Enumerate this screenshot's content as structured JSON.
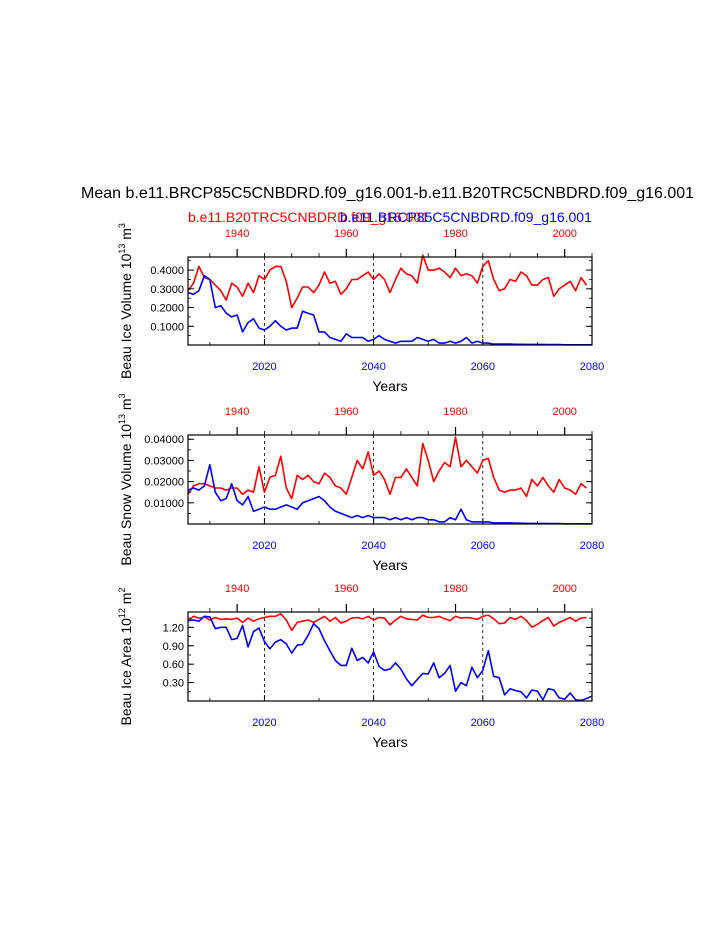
{
  "title": "Mean b.e11.BRCP85C5CNBDRD.f09_g16.001-b.e11.B20TRC5CNBDRD.f09_g16.001",
  "legend": {
    "red": "b.e11.B20TRC5CNBDRD.f09_g16.001",
    "blue": "b.e11.BRCP85C5CNBDRD.f09_g16.001"
  },
  "colors": {
    "red": "#ff0000",
    "blue": "#0000ff",
    "axis": "#000000"
  },
  "xlabel": "Years",
  "chart_data": [
    {
      "type": "line",
      "ylabel_parts": [
        "Beau Ice Volume 10",
        "13",
        " m",
        "3"
      ],
      "yticks": [
        0.1,
        0.2,
        0.3,
        0.4
      ],
      "yticklabels": [
        "0.1000",
        "0.2000",
        "0.3000",
        "0.4000"
      ],
      "ylim": [
        0.0,
        0.47
      ],
      "bottom_xlim": [
        2006,
        2080
      ],
      "bottom_xticks": [
        2020,
        2040,
        2060,
        2080
      ],
      "top_xlim": [
        1931,
        2005
      ],
      "top_xticks": [
        1940,
        1960,
        1980,
        2000
      ],
      "vlines_bottom": [
        2020,
        2040,
        2060
      ],
      "series": [
        {
          "name": "b.e11.B20TRC5CNBDRD.f09_g16.001",
          "color": "red",
          "x_start": 1931,
          "values": [
            0.29,
            0.33,
            0.42,
            0.36,
            0.35,
            0.32,
            0.29,
            0.24,
            0.33,
            0.31,
            0.26,
            0.33,
            0.28,
            0.37,
            0.35,
            0.4,
            0.42,
            0.42,
            0.34,
            0.2,
            0.25,
            0.31,
            0.31,
            0.28,
            0.32,
            0.39,
            0.33,
            0.34,
            0.27,
            0.3,
            0.35,
            0.35,
            0.37,
            0.39,
            0.35,
            0.38,
            0.35,
            0.28,
            0.35,
            0.41,
            0.38,
            0.37,
            0.33,
            0.48,
            0.4,
            0.4,
            0.41,
            0.39,
            0.36,
            0.41,
            0.37,
            0.38,
            0.37,
            0.33,
            0.42,
            0.45,
            0.35,
            0.29,
            0.3,
            0.35,
            0.34,
            0.39,
            0.37,
            0.32,
            0.32,
            0.35,
            0.36,
            0.26,
            0.3,
            0.32,
            0.34,
            0.29,
            0.36,
            0.32
          ]
        },
        {
          "name": "b.e11.BRCP85C5CNBDRD.f09_g16.001",
          "color": "blue",
          "x_start": 2006,
          "values": [
            0.28,
            0.27,
            0.29,
            0.37,
            0.35,
            0.2,
            0.21,
            0.17,
            0.15,
            0.16,
            0.07,
            0.12,
            0.14,
            0.09,
            0.08,
            0.1,
            0.13,
            0.1,
            0.08,
            0.09,
            0.09,
            0.18,
            0.17,
            0.16,
            0.07,
            0.07,
            0.04,
            0.03,
            0.02,
            0.06,
            0.04,
            0.04,
            0.04,
            0.02,
            0.03,
            0.05,
            0.03,
            0.02,
            0.01,
            0.02,
            0.02,
            0.02,
            0.04,
            0.03,
            0.02,
            0.03,
            0.01,
            0.01,
            0.02,
            0.01,
            0.02,
            0.04,
            0.01,
            0.02,
            0.01,
            0.01,
            0.005,
            0.005,
            0.005,
            0.005,
            0.004,
            0.004,
            0.003,
            0.003,
            0.003,
            0.003,
            0.002,
            0.002,
            0.002,
            0.001,
            0.001,
            0.001,
            0.001,
            0.001,
            0.001
          ]
        }
      ]
    },
    {
      "type": "line",
      "ylabel_parts": [
        "Beau Snow Volume 10",
        "13",
        " m",
        "3"
      ],
      "yticks": [
        0.01,
        0.02,
        0.03,
        0.04
      ],
      "yticklabels": [
        "0.01000",
        "0.02000",
        "0.03000",
        "0.04000"
      ],
      "ylim": [
        0.0,
        0.042
      ],
      "bottom_xlim": [
        2006,
        2080
      ],
      "bottom_xticks": [
        2020,
        2040,
        2060,
        2080
      ],
      "top_xlim": [
        1931,
        2005
      ],
      "top_xticks": [
        1940,
        1960,
        1980,
        2000
      ],
      "vlines_bottom": [
        2020,
        2040,
        2060
      ],
      "series": [
        {
          "name": "b.e11.B20TRC5CNBDRD.f09_g16.001",
          "color": "red",
          "x_start": 1931,
          "values": [
            0.014,
            0.018,
            0.019,
            0.019,
            0.018,
            0.017,
            0.017,
            0.016,
            0.017,
            0.017,
            0.014,
            0.016,
            0.015,
            0.027,
            0.015,
            0.022,
            0.023,
            0.032,
            0.017,
            0.012,
            0.023,
            0.021,
            0.023,
            0.02,
            0.019,
            0.024,
            0.022,
            0.018,
            0.017,
            0.014,
            0.022,
            0.03,
            0.026,
            0.034,
            0.023,
            0.025,
            0.021,
            0.014,
            0.022,
            0.022,
            0.026,
            0.022,
            0.018,
            0.038,
            0.03,
            0.02,
            0.025,
            0.029,
            0.027,
            0.041,
            0.027,
            0.03,
            0.027,
            0.024,
            0.03,
            0.031,
            0.022,
            0.016,
            0.015,
            0.016,
            0.016,
            0.017,
            0.013,
            0.021,
            0.018,
            0.022,
            0.018,
            0.015,
            0.021,
            0.017,
            0.016,
            0.014,
            0.019,
            0.017
          ]
        },
        {
          "name": "b.e11.BRCP85C5CNBDRD.f09_g16.001",
          "color": "blue",
          "x_start": 2006,
          "values": [
            0.016,
            0.017,
            0.016,
            0.018,
            0.028,
            0.015,
            0.011,
            0.012,
            0.019,
            0.011,
            0.009,
            0.013,
            0.006,
            0.007,
            0.008,
            0.007,
            0.007,
            0.008,
            0.009,
            0.008,
            0.007,
            0.01,
            0.011,
            0.012,
            0.013,
            0.011,
            0.008,
            0.006,
            0.005,
            0.004,
            0.003,
            0.004,
            0.003,
            0.004,
            0.003,
            0.003,
            0.003,
            0.002,
            0.003,
            0.002,
            0.003,
            0.002,
            0.003,
            0.003,
            0.002,
            0.002,
            0.001,
            0.001,
            0.003,
            0.002,
            0.007,
            0.002,
            0.001,
            0.001,
            0.001,
            0.001,
            0.0005,
            0.0005,
            0.0005,
            0.0005,
            0.0004,
            0.0004,
            0.0003,
            0.0003,
            0.0003,
            0.0003,
            0.0002,
            0.0002,
            0.0002,
            0.0001,
            0.0001,
            0.0001,
            0.0001,
            0.0001,
            0.0001
          ]
        }
      ]
    },
    {
      "type": "line",
      "ylabel_parts": [
        "Beau Ice Area 10",
        "12",
        " m",
        "2"
      ],
      "yticks": [
        0.3,
        0.6,
        0.9,
        1.2
      ],
      "yticklabels": [
        "0.30",
        "0.60",
        "0.90",
        "1.20"
      ],
      "ylim": [
        0.0,
        1.45
      ],
      "bottom_xlim": [
        2006,
        2080
      ],
      "bottom_xticks": [
        2020,
        2040,
        2060,
        2080
      ],
      "top_xlim": [
        1931,
        2005
      ],
      "top_xticks": [
        1940,
        1960,
        1980,
        2000
      ],
      "vlines_bottom": [
        2020,
        2040,
        2060
      ],
      "series": [
        {
          "name": "b.e11.B20TRC5CNBDRD.f09_g16.001",
          "color": "red",
          "x_start": 1931,
          "values": [
            1.3,
            1.38,
            1.35,
            1.37,
            1.32,
            1.36,
            1.33,
            1.34,
            1.33,
            1.35,
            1.28,
            1.35,
            1.3,
            1.34,
            1.36,
            1.38,
            1.38,
            1.42,
            1.32,
            1.15,
            1.28,
            1.3,
            1.32,
            1.28,
            1.33,
            1.38,
            1.3,
            1.36,
            1.27,
            1.3,
            1.35,
            1.36,
            1.34,
            1.38,
            1.32,
            1.36,
            1.35,
            1.24,
            1.32,
            1.38,
            1.34,
            1.33,
            1.32,
            1.4,
            1.36,
            1.36,
            1.38,
            1.34,
            1.31,
            1.38,
            1.35,
            1.36,
            1.35,
            1.33,
            1.38,
            1.4,
            1.34,
            1.26,
            1.27,
            1.36,
            1.33,
            1.38,
            1.31,
            1.2,
            1.25,
            1.31,
            1.36,
            1.22,
            1.28,
            1.32,
            1.36,
            1.3,
            1.35,
            1.36
          ]
        },
        {
          "name": "b.e11.BRCP85C5CNBDRD.f09_g16.001",
          "color": "blue",
          "x_start": 2006,
          "values": [
            1.31,
            1.32,
            1.3,
            1.38,
            1.37,
            1.18,
            1.2,
            1.2,
            1.0,
            1.02,
            1.23,
            0.88,
            1.13,
            1.19,
            0.97,
            0.85,
            0.96,
            1.0,
            0.93,
            0.78,
            0.91,
            0.92,
            1.07,
            1.26,
            1.18,
            0.98,
            0.82,
            0.66,
            0.58,
            0.58,
            0.86,
            0.66,
            0.71,
            0.62,
            0.8,
            0.56,
            0.5,
            0.52,
            0.62,
            0.52,
            0.36,
            0.25,
            0.35,
            0.45,
            0.44,
            0.62,
            0.38,
            0.45,
            0.58,
            0.16,
            0.3,
            0.25,
            0.55,
            0.38,
            0.5,
            0.82,
            0.4,
            0.38,
            0.1,
            0.2,
            0.17,
            0.15,
            0.05,
            0.18,
            0.16,
            0.02,
            0.2,
            0.18,
            0.05,
            0.03,
            0.13,
            0.02,
            0.01,
            0.04,
            0.08
          ]
        }
      ]
    }
  ]
}
